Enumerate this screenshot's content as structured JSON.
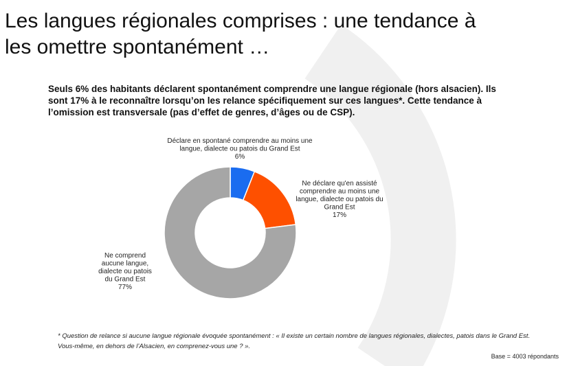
{
  "title": "Les langues régionales comprises : une tendance à les omettre spontanément …",
  "subtitle": "Seuls 6% des habitants déclarent spontanément comprendre une langue régionale (hors alsacien). Ils sont 17% à le reconnaître lorsqu’on les relance spécifiquement sur ces langues*. Cette tendance à l’omission est transversale (pas d’effet de genres, d’âges ou de CSP).",
  "chart_data": {
    "type": "pie",
    "variant": "donut",
    "slices": [
      {
        "label_lines": [
          "Déclare en spontané comprendre au moins une",
          "langue, dialecte ou patois du Grand Est",
          "6%"
        ],
        "value": 6,
        "color": "#1a6cf0"
      },
      {
        "label_lines": [
          "Ne déclare qu'en assisté",
          "comprendre au moins une",
          "langue, dialecte ou patois du",
          "Grand Est",
          "17%"
        ],
        "value": 17,
        "color": "#fe5000"
      },
      {
        "label_lines": [
          "Ne comprend",
          "aucune langue,",
          "dialecte ou patois",
          "du Grand Est",
          "77%"
        ],
        "value": 77,
        "color": "#a6a6a6"
      }
    ]
  },
  "footnote": "* Question de relance si aucune langue régionale évoquée spontanément : « Il existe un certain nombre de langues régionales, dialectes, patois dans le Grand Est. Vous-même, en dehors de l’Alsacien, en comprenez-vous une ? ».",
  "base_note": "Base = 4003 répondants"
}
